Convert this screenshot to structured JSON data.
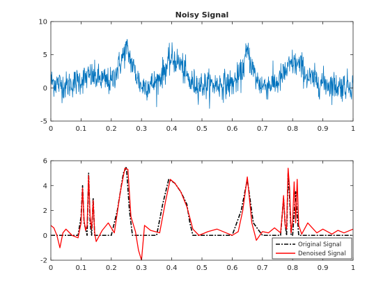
{
  "chart_data": [
    {
      "type": "line",
      "title": "Noisy Signal",
      "xlabel": "",
      "ylabel": "",
      "xlim": [
        0,
        1
      ],
      "ylim": [
        -5,
        10
      ],
      "xticks": [
        "0",
        "0.1",
        "0.2",
        "0.3",
        "0.4",
        "0.5",
        "0.6",
        "0.7",
        "0.8",
        "0.9",
        "1"
      ],
      "yticks": [
        "-5",
        "0",
        "5",
        "10"
      ],
      "grid": false,
      "series": [
        {
          "color": "#0072BD",
          "x": [
            0,
            0.05,
            0.1,
            0.13,
            0.2,
            0.23,
            0.25,
            0.28,
            0.3,
            0.35,
            0.38,
            0.4,
            0.43,
            0.46,
            0.5,
            0.6,
            0.63,
            0.65,
            0.68,
            0.7,
            0.75,
            0.77,
            0.8,
            0.83,
            0.85,
            0.9,
            0.95,
            1.0
          ],
          "y": [
            1.0,
            0.3,
            1.2,
            1.8,
            0.8,
            3.8,
            6.0,
            2.2,
            0.2,
            0.8,
            3.0,
            4.5,
            3.6,
            0.8,
            0.4,
            0.6,
            2.0,
            5.5,
            1.2,
            0.3,
            0.8,
            2.0,
            3.8,
            3.2,
            1.5,
            0.8,
            0.2,
            0.5
          ]
        }
      ]
    },
    {
      "type": "line",
      "title": "",
      "xlabel": "",
      "ylabel": "",
      "xlim": [
        0,
        1
      ],
      "ylim": [
        -2,
        6
      ],
      "xticks": [
        "0",
        "0.1",
        "0.2",
        "0.3",
        "0.4",
        "0.5",
        "0.6",
        "0.7",
        "0.8",
        "0.9",
        "1"
      ],
      "yticks": [
        "-2",
        "0",
        "2",
        "4",
        "6"
      ],
      "grid": false,
      "legend": "bottom-right",
      "series": [
        {
          "name": "Original Signal",
          "color": "#000000",
          "style": "dash-dot",
          "x": [
            0,
            0.09,
            0.1,
            0.105,
            0.11,
            0.12,
            0.125,
            0.13,
            0.135,
            0.14,
            0.145,
            0.15,
            0.2,
            0.22,
            0.24,
            0.25,
            0.26,
            0.27,
            0.3,
            0.35,
            0.37,
            0.39,
            0.41,
            0.43,
            0.45,
            0.46,
            0.47,
            0.6,
            0.63,
            0.65,
            0.67,
            0.7,
            0.76,
            0.77,
            0.775,
            0.78,
            0.785,
            0.79,
            0.795,
            0.8,
            0.81,
            0.82,
            1.0
          ],
          "y": [
            0,
            0,
            1.5,
            4.0,
            1.0,
            0,
            5.0,
            1.0,
            0,
            3.0,
            0,
            0,
            0,
            2.0,
            5.0,
            5.5,
            2.0,
            0,
            0,
            0,
            2.5,
            4.5,
            4.2,
            3.5,
            2.5,
            1.0,
            0,
            0,
            2.0,
            4.5,
            1.0,
            0,
            0,
            3.0,
            1.0,
            0,
            5.0,
            3.0,
            0,
            0,
            3.5,
            0,
            0
          ]
        },
        {
          "name": "Denoised Signal",
          "color": "#FF0000",
          "style": "solid",
          "x": [
            0,
            0.01,
            0.02,
            0.03,
            0.04,
            0.05,
            0.07,
            0.09,
            0.1,
            0.105,
            0.11,
            0.115,
            0.12,
            0.125,
            0.13,
            0.135,
            0.14,
            0.145,
            0.15,
            0.17,
            0.19,
            0.21,
            0.23,
            0.245,
            0.255,
            0.265,
            0.28,
            0.29,
            0.3,
            0.31,
            0.33,
            0.36,
            0.38,
            0.395,
            0.41,
            0.43,
            0.45,
            0.47,
            0.49,
            0.52,
            0.55,
            0.58,
            0.6,
            0.62,
            0.635,
            0.65,
            0.665,
            0.68,
            0.7,
            0.72,
            0.74,
            0.76,
            0.765,
            0.77,
            0.775,
            0.78,
            0.785,
            0.79,
            0.795,
            0.8,
            0.805,
            0.81,
            0.815,
            0.82,
            0.83,
            0.85,
            0.88,
            0.9,
            0.93,
            0.95,
            0.97,
            1.0
          ],
          "y": [
            0.8,
            0.6,
            0.0,
            -1.0,
            0.2,
            0.5,
            0.0,
            -0.2,
            1.0,
            3.8,
            1.2,
            0.4,
            0.8,
            4.8,
            1.5,
            0.5,
            2.8,
            0.2,
            -0.5,
            0.4,
            1.0,
            0.2,
            3.5,
            5.4,
            5.3,
            1.5,
            0.3,
            -1.2,
            -2.0,
            0.8,
            0.4,
            0.2,
            2.8,
            4.5,
            4.2,
            3.5,
            2.3,
            0.5,
            0.0,
            0.3,
            0.5,
            0.2,
            0.0,
            0.3,
            2.0,
            4.7,
            1.0,
            -0.4,
            0.3,
            0.2,
            0.6,
            0.2,
            1.5,
            3.2,
            0.8,
            0.5,
            5.4,
            3.8,
            0.2,
            1.2,
            4.3,
            1.0,
            4.5,
            0.8,
            0.1,
            1.0,
            0.2,
            0.5,
            0.1,
            0.4,
            0.2,
            0.5
          ]
        }
      ]
    }
  ]
}
